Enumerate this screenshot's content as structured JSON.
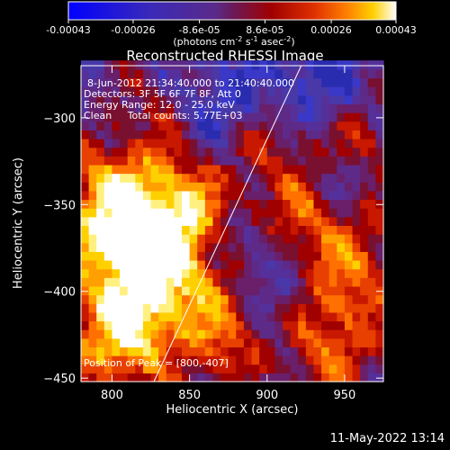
{
  "header": {
    "title": "Reconstructed RHESSI Image"
  },
  "colorbar": {
    "label": "(photons cm",
    "label_sup1": "-2",
    "label_mid": " s",
    "label_sup2": "-1",
    "label_end": " asec",
    "label_sup3": "-2",
    "label_close": ")",
    "ticks": [
      "-0.00043",
      "-0.00026",
      "-8.6e-05",
      "8.6e-05",
      "0.00026",
      "0.00043"
    ],
    "tick_values": [
      -0.00043,
      -0.00026,
      -8.6e-05,
      8.6e-05,
      0.00026,
      0.00043
    ],
    "range": [
      -0.00043,
      0.00043
    ]
  },
  "info": {
    "line1": "8-Jun-2012 21:34:40.000 to 21:40:40.000",
    "line2": "Detectors: 3F 5F 6F 7F 8F, Att 0",
    "line3": "Energy Range: 12.0 - 25.0 keV",
    "line4": "Clean     Total counts: 5.77E+03",
    "peak": "Position of Peak = [800,-407]"
  },
  "footer": {
    "timestamp": "11-May-2022 13:14"
  },
  "chart_data": {
    "type": "heatmap",
    "title": "Reconstructed RHESSI Image",
    "xlabel": "Heliocentric X (arcsec)",
    "ylabel": "Heliocentric Y (arcsec)",
    "xlim": [
      780,
      975
    ],
    "ylim": [
      -452,
      -270
    ],
    "x_ticks": [
      800,
      850,
      900,
      950
    ],
    "y_ticks": [
      -300,
      -350,
      -400,
      -450
    ],
    "x_tick_labels": [
      "800",
      "850",
      "900",
      "950"
    ],
    "y_tick_labels": [
      "−300",
      "−350",
      "−400",
      "−450"
    ],
    "peak": [
      800,
      -407
    ],
    "limb_line": {
      "x": [
        827,
        922
      ],
      "y": [
        -452,
        -270
      ]
    },
    "grid": false,
    "colormap": "blue-purple-red-yellow-white"
  }
}
